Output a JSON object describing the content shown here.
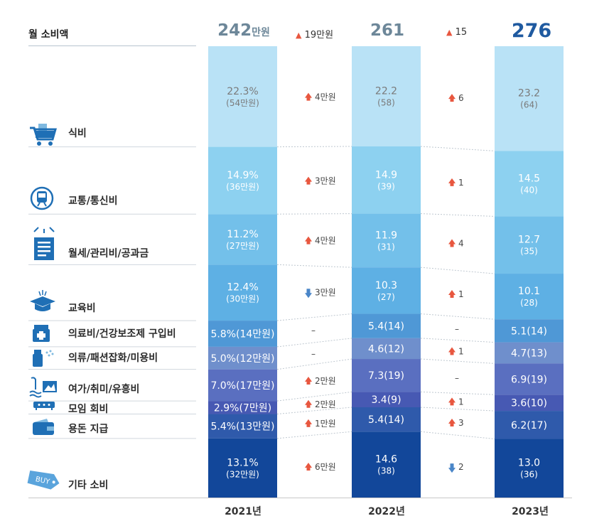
{
  "header": {
    "label": "월 소비액",
    "totals": [
      {
        "year": "2021년",
        "value": "242",
        "unit": "만원"
      },
      {
        "year": "2022년",
        "value": "261",
        "unit": ""
      },
      {
        "year": "2023년",
        "value": "276",
        "unit": ""
      }
    ],
    "total_changes": [
      {
        "dir": "up",
        "text": "19만원"
      },
      {
        "dir": "up",
        "text": "15"
      }
    ]
  },
  "colors": {
    "up": "#e8573f",
    "down": "#4a86c8",
    "divider": "#d0d7de",
    "icon": "#1f6fb5"
  },
  "chart_data": {
    "type": "bar",
    "stacked": true,
    "categories": [
      "2021년",
      "2022년",
      "2023년"
    ],
    "totals": [
      242,
      261,
      276
    ],
    "series": [
      {
        "name": "식비",
        "icon": "shopping-cart-icon",
        "color": "#b9e2f6",
        "text": "#7a7a7a",
        "pct": [
          22.3,
          22.2,
          23.2
        ],
        "amount": [
          54,
          58,
          64
        ],
        "labels": [
          [
            "22.3%",
            "(54만원)"
          ],
          [
            "22.2",
            "(58)"
          ],
          [
            "23.2",
            "(64)"
          ]
        ],
        "changes": [
          {
            "dir": "up",
            "text": "4만원"
          },
          {
            "dir": "up",
            "text": "6"
          }
        ]
      },
      {
        "name": "교통/통신비",
        "icon": "train-icon",
        "color": "#8dd1f0",
        "text": "#ffffff",
        "pct": [
          14.9,
          14.9,
          14.5
        ],
        "amount": [
          36,
          39,
          40
        ],
        "labels": [
          [
            "14.9%",
            "(36만원)"
          ],
          [
            "14.9",
            "(39)"
          ],
          [
            "14.5",
            "(40)"
          ]
        ],
        "changes": [
          {
            "dir": "up",
            "text": "3만원"
          },
          {
            "dir": "up",
            "text": "1"
          }
        ]
      },
      {
        "name": "월세/관리비/공과금",
        "icon": "bill-icon",
        "color": "#73c0ea",
        "text": "#ffffff",
        "pct": [
          11.2,
          11.9,
          12.7
        ],
        "amount": [
          27,
          31,
          35
        ],
        "labels": [
          [
            "11.2%",
            "(27만원)"
          ],
          [
            "11.9",
            "(31)"
          ],
          [
            "12.7",
            "(35)"
          ]
        ],
        "changes": [
          {
            "dir": "up",
            "text": "4만원"
          },
          {
            "dir": "up",
            "text": "4"
          }
        ]
      },
      {
        "name": "교육비",
        "icon": "graduation-cap-icon",
        "color": "#5eb0e4",
        "text": "#ffffff",
        "pct": [
          12.4,
          10.3,
          10.1
        ],
        "amount": [
          30,
          27,
          28
        ],
        "labels": [
          [
            "12.4%",
            "(30만원)"
          ],
          [
            "10.3",
            "(27)"
          ],
          [
            "10.1",
            "(28)"
          ]
        ],
        "changes": [
          {
            "dir": "down",
            "text": "3만원"
          },
          {
            "dir": "up",
            "text": "1"
          }
        ]
      },
      {
        "name": "의료비/건강보조제 구입비",
        "icon": "medicine-icon",
        "color": "#4f98d6",
        "text": "#ffffff",
        "pct": [
          5.8,
          5.4,
          5.1
        ],
        "amount": [
          14,
          14,
          14
        ],
        "labels": [
          [
            "5.8%(14만원)"
          ],
          [
            "5.4(14)"
          ],
          [
            "5.1(14)"
          ]
        ],
        "changes": [
          {
            "dir": "none",
            "text": "–"
          },
          {
            "dir": "none",
            "text": "–"
          }
        ]
      },
      {
        "name": "의류/패션잡화/미용비",
        "icon": "clothing-spray-icon",
        "color": "#6f8fcc",
        "text": "#ffffff",
        "pct": [
          5.0,
          4.6,
          4.7
        ],
        "amount": [
          12,
          12,
          13
        ],
        "labels": [
          [
            "5.0%(12만원)"
          ],
          [
            "4.6(12)"
          ],
          [
            "4.7(13)"
          ]
        ],
        "changes": [
          {
            "dir": "none",
            "text": "–"
          },
          {
            "dir": "up",
            "text": "1"
          }
        ]
      },
      {
        "name": "여가/취미/유흥비",
        "icon": "leisure-icon",
        "color": "#5a6fc0",
        "text": "#ffffff",
        "pct": [
          7.0,
          7.3,
          6.9
        ],
        "amount": [
          17,
          19,
          19
        ],
        "labels": [
          [
            "7.0%(17만원)"
          ],
          [
            "7.3(19)"
          ],
          [
            "6.9(19)"
          ]
        ],
        "changes": [
          {
            "dir": "up",
            "text": "2만원"
          },
          {
            "dir": "none",
            "text": "–"
          }
        ]
      },
      {
        "name": "모임 회비",
        "icon": "meeting-icon",
        "color": "#4759b3",
        "text": "#ffffff",
        "pct": [
          2.9,
          3.4,
          3.6
        ],
        "amount": [
          7,
          9,
          10
        ],
        "labels": [
          [
            "2.9%(7만원)"
          ],
          [
            "3.4(9)"
          ],
          [
            "3.6(10)"
          ]
        ],
        "changes": [
          {
            "dir": "up",
            "text": "2만원"
          },
          {
            "dir": "up",
            "text": "1"
          }
        ]
      },
      {
        "name": "용돈 지급",
        "icon": "wallet-icon",
        "color": "#2f5aab",
        "text": "#ffffff",
        "pct": [
          5.4,
          5.4,
          6.2
        ],
        "amount": [
          13,
          14,
          17
        ],
        "labels": [
          [
            "5.4%(13만원)"
          ],
          [
            "5.4(14)"
          ],
          [
            "6.2(17)"
          ]
        ],
        "changes": [
          {
            "dir": "up",
            "text": "1만원"
          },
          {
            "dir": "up",
            "text": "3"
          }
        ]
      },
      {
        "name": "기타 소비",
        "icon": "buy-tag-icon",
        "color": "#12479a",
        "text": "#ffffff",
        "pct": [
          13.1,
          14.6,
          13.0
        ],
        "amount": [
          32,
          38,
          36
        ],
        "labels": [
          [
            "13.1%",
            "(32만원)"
          ],
          [
            "14.6",
            "(38)"
          ],
          [
            "13.0",
            "(36)"
          ]
        ],
        "changes": [
          {
            "dir": "up",
            "text": "6만원"
          },
          {
            "dir": "down",
            "text": "2"
          }
        ]
      }
    ]
  }
}
